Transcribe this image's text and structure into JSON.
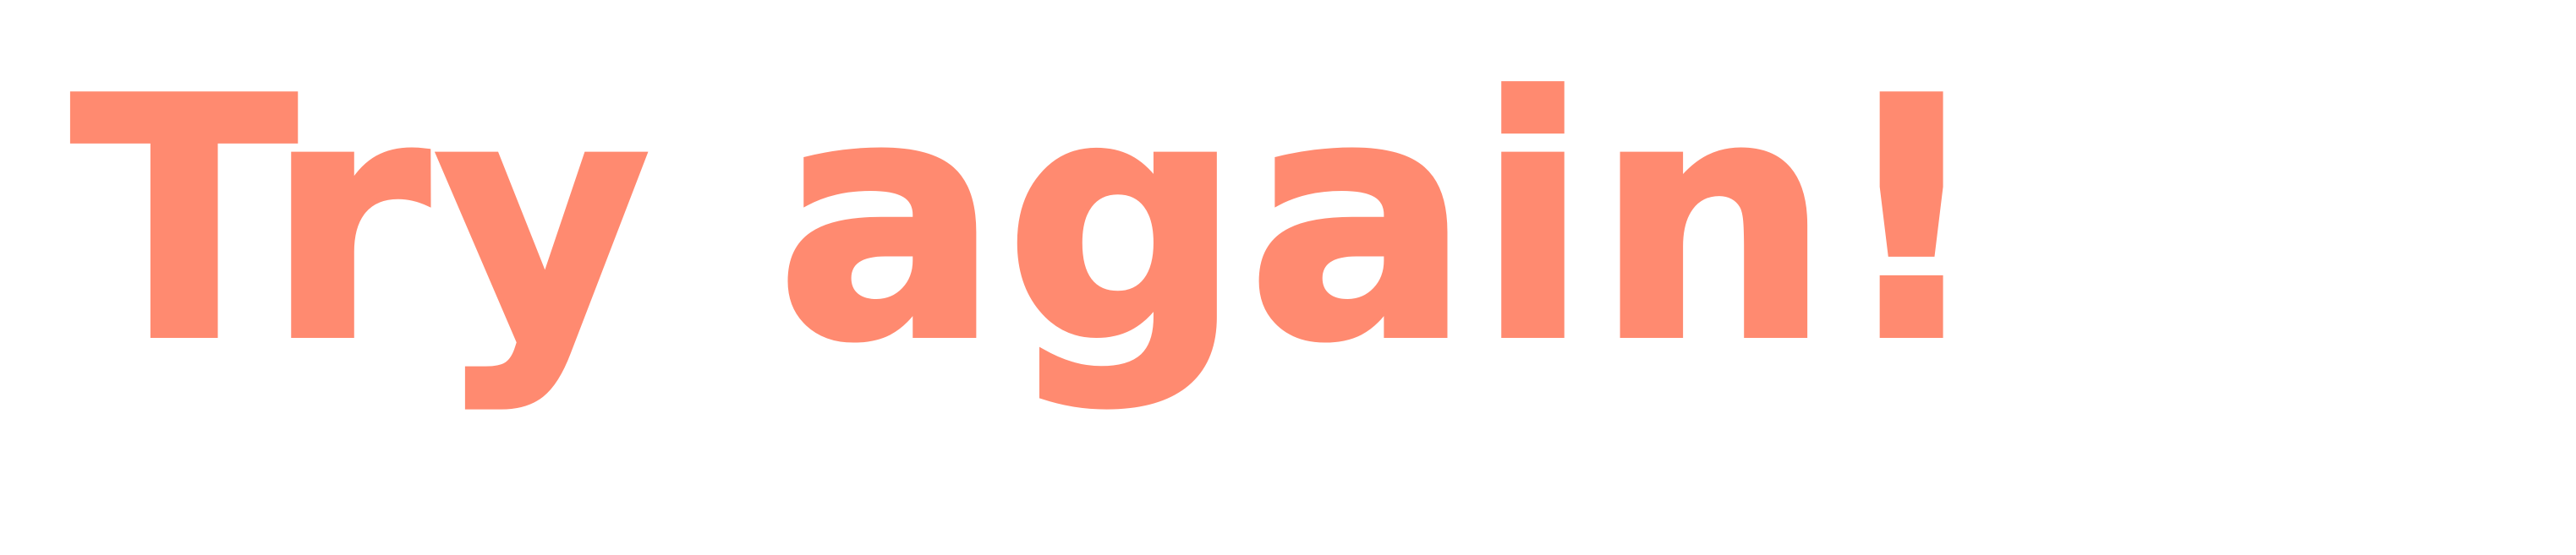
{
  "message": {
    "text": "Try again!",
    "color": "#ff8a70"
  },
  "background": {
    "color": "#ffffff"
  }
}
